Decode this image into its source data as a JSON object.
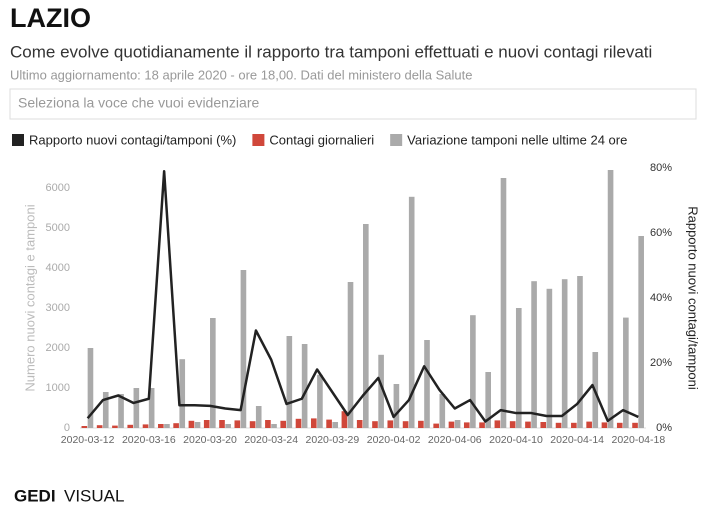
{
  "chart_data": {
    "type": "bar",
    "title": "LAZIO",
    "subtitle": "Come evolve quotidianamente il rapporto tra tamponi effettuati e nuovi contagi rilevati",
    "note": "Ultimo aggiornamento: 18 aprile 2020 - ore 18,00. Dati del ministero della Salute",
    "ylabel": "Numero nuovi contagi e tamponi",
    "y2label": "Rapporto nuovi contagi/tamponi",
    "categories": [
      "2020-03-12",
      null,
      null,
      null,
      "2020-03-16",
      null,
      null,
      null,
      "2020-03-20",
      null,
      null,
      null,
      "2020-03-24",
      null,
      null,
      null,
      "2020-03-29",
      null,
      null,
      null,
      "2020-04-02",
      null,
      null,
      null,
      "2020-04-06",
      null,
      null,
      null,
      "2020-04-10",
      null,
      null,
      null,
      "2020-04-14",
      null,
      null,
      null,
      "2020-04-18"
    ],
    "series": [
      {
        "name": "Rapporto nuovi contagi/tamponi (%)",
        "type": "line",
        "axis": "y2",
        "color": "#222222",
        "values": [
          3,
          8.6,
          10,
          7.7,
          9,
          79,
          7,
          7,
          6.8,
          6,
          5.5,
          30,
          21,
          7.4,
          9,
          18,
          11,
          4,
          10,
          15.4,
          3.4,
          8.6,
          19,
          11.7,
          6,
          8.6,
          2,
          5.5,
          4.6,
          4.6,
          3.7,
          3.7,
          7.4,
          13.2,
          2.2,
          5.5,
          3.4
        ]
      },
      {
        "name": "Contagi giornalieri",
        "type": "bar",
        "color": "#d0473a",
        "values": [
          50,
          70,
          60,
          80,
          90,
          100,
          120,
          180,
          200,
          200,
          190,
          170,
          200,
          180,
          230,
          240,
          210,
          420,
          200,
          170,
          190,
          170,
          180,
          110,
          160,
          140,
          140,
          190,
          170,
          160,
          150,
          130,
          130,
          160,
          140,
          130,
          130
        ]
      },
      {
        "name": "Variazione tamponi nelle ultime 24 ore",
        "type": "bar",
        "color": "#aaaaaa",
        "values": [
          2000,
          900,
          850,
          1000,
          1000,
          100,
          1720,
          150,
          2750,
          100,
          3950,
          550,
          100,
          2300,
          2100,
          1330,
          150,
          3650,
          5100,
          1830,
          1100,
          5780,
          2200,
          850,
          200,
          2820,
          1400,
          6250,
          3000,
          3670,
          3480,
          3720,
          3800,
          1900,
          6450,
          2760,
          4800
        ]
      }
    ],
    "ylim": [
      0,
      6500
    ],
    "yticks": [
      0,
      1000,
      2000,
      3000,
      4000,
      5000,
      6000
    ],
    "y2lim": [
      0,
      80
    ],
    "y2ticks": [
      {
        "value": 0,
        "label": "0%"
      },
      {
        "value": 20,
        "label": "20%"
      },
      {
        "value": 40,
        "label": "40%"
      },
      {
        "value": 60,
        "label": "60%"
      },
      {
        "value": 80,
        "label": "80%"
      }
    ],
    "grid": false,
    "legend": "top"
  },
  "dropdown": {
    "placeholder": "Seleziona la voce che vuoi evidenziare"
  },
  "logo": {
    "brand": "GEDI",
    "label": "VISUAL"
  }
}
